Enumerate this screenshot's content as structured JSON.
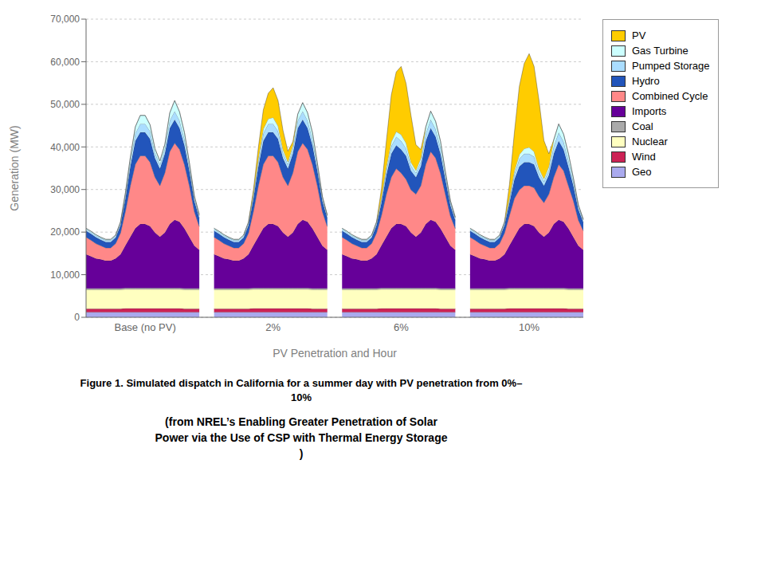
{
  "chart_data": {
    "type": "area",
    "stacked": true,
    "grid": true,
    "legend": "upper right",
    "xlabel": "PV Penetration and Hour",
    "ylabel": "Generation (MW)",
    "annotations": [
      "Figure 1. Simulated dispatch in California for a summer day with PV penetration from 0%–\n10%",
      "(from NREL’s Enabling Greater Penetration of Solar\nPower via the Use of CSP with Thermal Energy Storage\n)"
    ],
    "ylim": [
      0,
      70000
    ],
    "yticks": [
      0,
      {
        "value": 10000,
        "label": "10,000"
      },
      {
        "value": 20000,
        "label": "20,000"
      },
      {
        "value": 30000,
        "label": "30,000"
      },
      {
        "value": 40000,
        "label": "40,000"
      },
      {
        "value": 50000,
        "label": "50,000"
      },
      {
        "value": 60000,
        "label": "60,000"
      },
      {
        "value": 70000,
        "label": "70,000"
      }
    ],
    "categories": [
      null,
      null,
      null,
      null,
      null,
      null,
      null,
      null,
      null,
      null,
      null,
      null,
      "Base (no PV)",
      null,
      null,
      null,
      null,
      null,
      null,
      null,
      null,
      null,
      null,
      null,
      null,
      null,
      null,
      null,
      null,
      null,
      null,
      null,
      null,
      null,
      null,
      null,
      null,
      null,
      "2%",
      null,
      null,
      null,
      null,
      null,
      null,
      null,
      null,
      null,
      null,
      null,
      null,
      null,
      null,
      null,
      null,
      null,
      null,
      null,
      null,
      null,
      null,
      null,
      null,
      null,
      "6%",
      null,
      null,
      null,
      null,
      null,
      null,
      null,
      null,
      null,
      null,
      null,
      null,
      null,
      null,
      null,
      null,
      null,
      null,
      null,
      null,
      null,
      null,
      null,
      null,
      null,
      "10%",
      null,
      null,
      null,
      null,
      null,
      null,
      null,
      null,
      null,
      null,
      null
    ],
    "series": [
      {
        "name": "Geo",
        "color": "#aaaaee",
        "values": [
          1200,
          1200,
          1200,
          1200,
          1200,
          1200,
          1200,
          1200,
          1200,
          1200,
          1200,
          1200,
          1200,
          1200,
          1200,
          1200,
          1200,
          1200,
          1200,
          1200,
          1200,
          1200,
          1200,
          1200,
          null,
          null,
          1200,
          1200,
          1200,
          1200,
          1200,
          1200,
          1200,
          1200,
          1200,
          1200,
          1200,
          1200,
          1200,
          1200,
          1200,
          1200,
          1200,
          1200,
          1200,
          1200,
          1200,
          1200,
          1200,
          1200,
          null,
          null,
          1200,
          1200,
          1200,
          1200,
          1200,
          1200,
          1200,
          1200,
          1200,
          1200,
          1200,
          1200,
          1200,
          1200,
          1200,
          1200,
          1200,
          1200,
          1200,
          1200,
          1200,
          1200,
          1200,
          1200,
          null,
          null,
          1200,
          1200,
          1200,
          1200,
          1200,
          1200,
          1200,
          1200,
          1200,
          1200,
          1200,
          1200,
          1200,
          1200,
          1200,
          1200,
          1200,
          1200,
          1200,
          1200,
          1200,
          1200,
          1200,
          1200
        ]
      },
      {
        "name": "Wind",
        "color": "#cc2255",
        "values": [
          800,
          800,
          800,
          800,
          800,
          800,
          800,
          800,
          900,
          900,
          900,
          900,
          900,
          900,
          900,
          900,
          900,
          900,
          900,
          900,
          800,
          800,
          800,
          800,
          null,
          null,
          800,
          800,
          800,
          800,
          800,
          800,
          800,
          800,
          900,
          900,
          900,
          900,
          900,
          900,
          900,
          900,
          900,
          900,
          900,
          900,
          800,
          800,
          800,
          800,
          null,
          null,
          800,
          800,
          800,
          800,
          800,
          800,
          800,
          800,
          900,
          900,
          900,
          900,
          900,
          900,
          900,
          900,
          900,
          900,
          900,
          900,
          800,
          800,
          800,
          800,
          null,
          null,
          800,
          800,
          800,
          800,
          800,
          800,
          800,
          800,
          900,
          900,
          900,
          900,
          900,
          900,
          900,
          900,
          900,
          900,
          900,
          900,
          800,
          800,
          800,
          800
        ]
      },
      {
        "name": "Nuclear",
        "color": "#ffffc0",
        "values": [
          4500,
          4500,
          4500,
          4500,
          4500,
          4500,
          4500,
          4500,
          4500,
          4500,
          4500,
          4500,
          4500,
          4500,
          4500,
          4500,
          4500,
          4500,
          4500,
          4500,
          4500,
          4500,
          4500,
          4500,
          null,
          null,
          4500,
          4500,
          4500,
          4500,
          4500,
          4500,
          4500,
          4500,
          4500,
          4500,
          4500,
          4500,
          4500,
          4500,
          4500,
          4500,
          4500,
          4500,
          4500,
          4500,
          4500,
          4500,
          4500,
          4500,
          null,
          null,
          4500,
          4500,
          4500,
          4500,
          4500,
          4500,
          4500,
          4500,
          4500,
          4500,
          4500,
          4500,
          4500,
          4500,
          4500,
          4500,
          4500,
          4500,
          4500,
          4500,
          4500,
          4500,
          4500,
          4500,
          null,
          null,
          4500,
          4500,
          4500,
          4500,
          4500,
          4500,
          4500,
          4500,
          4500,
          4500,
          4500,
          4500,
          4500,
          4500,
          4500,
          4500,
          4500,
          4500,
          4500,
          4500,
          4500,
          4500,
          4500,
          4500
        ]
      },
      {
        "name": "Coal",
        "color": "#aaaaaa",
        "values": [
          300,
          300,
          300,
          300,
          300,
          300,
          300,
          300,
          300,
          300,
          300,
          300,
          300,
          300,
          300,
          300,
          300,
          300,
          300,
          300,
          300,
          300,
          300,
          300,
          null,
          null,
          300,
          300,
          300,
          300,
          300,
          300,
          300,
          300,
          300,
          300,
          300,
          300,
          300,
          300,
          300,
          300,
          300,
          300,
          300,
          300,
          300,
          300,
          300,
          300,
          null,
          null,
          300,
          300,
          300,
          300,
          300,
          300,
          300,
          300,
          300,
          300,
          300,
          300,
          300,
          300,
          300,
          300,
          300,
          300,
          300,
          300,
          300,
          300,
          300,
          300,
          null,
          null,
          300,
          300,
          300,
          300,
          300,
          300,
          300,
          300,
          300,
          300,
          300,
          300,
          300,
          300,
          300,
          300,
          300,
          300,
          300,
          300,
          300,
          300,
          300,
          300
        ]
      },
      {
        "name": "Imports",
        "color": "#660099",
        "values": [
          8000,
          7500,
          7000,
          6800,
          6500,
          6500,
          7000,
          8000,
          10000,
          12000,
          14000,
          15000,
          15000,
          14500,
          13000,
          12000,
          13000,
          15000,
          16000,
          15500,
          14000,
          12000,
          10000,
          9000,
          null,
          null,
          8000,
          7500,
          7000,
          6800,
          6500,
          6500,
          7000,
          8000,
          10000,
          12000,
          14000,
          15000,
          15000,
          14500,
          13000,
          12000,
          13000,
          15000,
          16000,
          15500,
          14000,
          12000,
          10000,
          9000,
          null,
          null,
          8000,
          7500,
          7000,
          6800,
          6500,
          6500,
          7000,
          8000,
          10000,
          12000,
          14000,
          15000,
          15000,
          14500,
          13000,
          12000,
          13000,
          15000,
          16000,
          15500,
          14000,
          12000,
          10000,
          9000,
          null,
          null,
          8000,
          7500,
          7000,
          6800,
          6500,
          6500,
          7000,
          8000,
          10000,
          12000,
          14000,
          15000,
          15000,
          14500,
          13000,
          12000,
          13000,
          15000,
          16000,
          15500,
          14000,
          12000,
          10000,
          9000
        ]
      },
      {
        "name": "Combined Cycle",
        "color": "#ff8888",
        "values": [
          4000,
          3800,
          3500,
          3200,
          3000,
          3000,
          3500,
          5000,
          8000,
          12000,
          15000,
          16000,
          16000,
          15000,
          13000,
          12000,
          14000,
          17000,
          18000,
          17000,
          15000,
          12000,
          8000,
          5500,
          null,
          null,
          4000,
          3800,
          3500,
          3200,
          3000,
          3000,
          3500,
          5000,
          8000,
          12000,
          15000,
          16000,
          16000,
          15000,
          13000,
          12000,
          14000,
          17000,
          18000,
          17000,
          15000,
          12000,
          8000,
          5500,
          null,
          null,
          4000,
          3800,
          3500,
          3200,
          3000,
          3000,
          3500,
          5000,
          7000,
          10000,
          12000,
          13000,
          12000,
          11000,
          10000,
          10000,
          11000,
          14000,
          16000,
          15000,
          13000,
          10000,
          7000,
          5000,
          null,
          null,
          4000,
          3800,
          3500,
          3200,
          3000,
          3000,
          3500,
          5000,
          7000,
          9000,
          9000,
          9000,
          9000,
          9000,
          8500,
          8000,
          9000,
          11000,
          13000,
          12000,
          10000,
          8500,
          6000,
          4500
        ]
      },
      {
        "name": "Hydro",
        "color": "#2255bb",
        "values": [
          1500,
          1500,
          1500,
          1400,
          1400,
          1400,
          1400,
          1800,
          3000,
          4500,
          5500,
          5500,
          5500,
          5500,
          4500,
          4000,
          4500,
          5500,
          5500,
          5000,
          4500,
          3500,
          2500,
          2000,
          null,
          null,
          1500,
          1500,
          1500,
          1400,
          1400,
          1400,
          1400,
          1800,
          3000,
          4500,
          5500,
          5500,
          5500,
          5500,
          4500,
          4000,
          4500,
          5500,
          5500,
          5000,
          4500,
          3500,
          2500,
          2000,
          null,
          null,
          1500,
          1500,
          1500,
          1400,
          1400,
          1400,
          1400,
          1800,
          3000,
          4500,
          5500,
          5500,
          5500,
          5500,
          4500,
          4000,
          4500,
          5500,
          5500,
          5000,
          4500,
          3500,
          2500,
          2000,
          null,
          null,
          1500,
          1500,
          1500,
          1400,
          1400,
          1400,
          1400,
          1800,
          3000,
          4500,
          5500,
          5500,
          5500,
          5500,
          4500,
          4000,
          4500,
          5500,
          5500,
          5000,
          4500,
          3500,
          2500,
          2000
        ]
      },
      {
        "name": "Pumped Storage",
        "color": "#aaddff",
        "values": [
          400,
          400,
          400,
          400,
          400,
          400,
          400,
          500,
          800,
          1200,
          1800,
          2000,
          2000,
          1800,
          1200,
          1000,
          1200,
          1800,
          2000,
          1800,
          1500,
          1000,
          700,
          500,
          null,
          null,
          400,
          400,
          400,
          400,
          400,
          400,
          400,
          500,
          800,
          1200,
          1800,
          2000,
          2000,
          1800,
          1200,
          1000,
          1200,
          1800,
          2000,
          1800,
          1500,
          1000,
          700,
          500,
          null,
          null,
          400,
          400,
          400,
          400,
          400,
          400,
          400,
          500,
          800,
          1200,
          1800,
          2000,
          2000,
          1800,
          1200,
          1000,
          1200,
          1800,
          2000,
          1800,
          1500,
          1000,
          700,
          500,
          null,
          null,
          400,
          400,
          400,
          400,
          400,
          400,
          400,
          500,
          800,
          1200,
          1800,
          2000,
          2000,
          1800,
          1200,
          1000,
          1200,
          1800,
          2000,
          1800,
          1500,
          1000,
          700,
          500
        ]
      },
      {
        "name": "Gas Turbine",
        "color": "#ccffff",
        "values": [
          200,
          200,
          200,
          200,
          200,
          200,
          200,
          300,
          600,
          1000,
          1500,
          2000,
          2000,
          1500,
          1000,
          800,
          1000,
          1800,
          2500,
          2000,
          1500,
          900,
          500,
          300,
          null,
          null,
          200,
          200,
          200,
          200,
          200,
          200,
          200,
          300,
          500,
          800,
          1000,
          1200,
          1500,
          1200,
          800,
          600,
          800,
          1500,
          2000,
          1800,
          1500,
          800,
          400,
          200,
          null,
          null,
          200,
          200,
          200,
          200,
          200,
          200,
          200,
          300,
          500,
          800,
          1000,
          1200,
          1500,
          1200,
          800,
          600,
          800,
          1500,
          2000,
          1800,
          1500,
          800,
          400,
          200,
          null,
          null,
          200,
          200,
          200,
          200,
          200,
          200,
          200,
          300,
          500,
          800,
          1000,
          1200,
          1500,
          1200,
          800,
          600,
          800,
          1500,
          2000,
          1800,
          1500,
          800,
          400,
          200
        ]
      },
      {
        "name": "PV",
        "color": "#ffcc00",
        "values": [
          0,
          0,
          0,
          0,
          0,
          0,
          0,
          0,
          0,
          0,
          0,
          0,
          0,
          0,
          0,
          0,
          0,
          0,
          0,
          0,
          0,
          0,
          0,
          0,
          null,
          null,
          0,
          0,
          0,
          0,
          0,
          0,
          0,
          0,
          800,
          2500,
          4500,
          6000,
          7000,
          6000,
          4500,
          2500,
          800,
          0,
          0,
          0,
          0,
          0,
          0,
          0,
          null,
          null,
          0,
          0,
          0,
          0,
          0,
          0,
          0,
          0,
          2000,
          6000,
          11000,
          14000,
          16000,
          14000,
          11000,
          6000,
          2000,
          0,
          0,
          0,
          0,
          0,
          0,
          0,
          null,
          null,
          0,
          0,
          0,
          0,
          0,
          0,
          0,
          0,
          3000,
          9000,
          16000,
          20000,
          22000,
          20000,
          16000,
          9000,
          3000,
          0,
          0,
          0,
          0,
          0,
          0,
          0
        ]
      }
    ]
  }
}
